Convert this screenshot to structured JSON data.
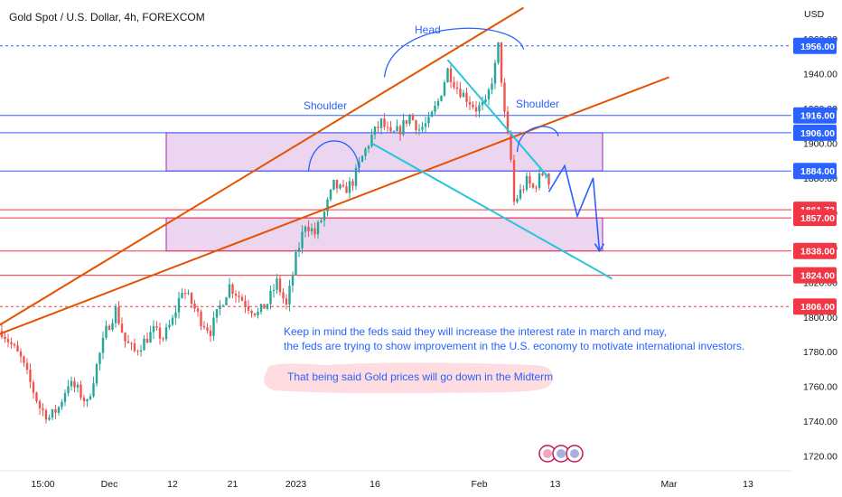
{
  "chart_data": {
    "type": "candlestick",
    "title": "Gold Spot / U.S. Dollar, 4h, FOREXCOM",
    "currency_label": "USD",
    "y_range": [
      1712,
      1972
    ],
    "y_ticks": [
      1720,
      1740,
      1760,
      1780,
      1800,
      1820,
      1840,
      1860,
      1880,
      1900,
      1920,
      1940,
      1960
    ],
    "y_tick_labels": [
      "1720.00",
      "1740.00",
      "1760.00",
      "1780.00",
      "1800.00",
      "1820.00",
      "1840.00",
      "1860.00",
      "1880.00",
      "1900.00",
      "1920.00",
      "1940.00",
      "1960.00"
    ],
    "x_labels": [
      {
        "label": "15:00",
        "index": 13
      },
      {
        "label": "Dec",
        "index": 34
      },
      {
        "label": "12",
        "index": 54
      },
      {
        "label": "21",
        "index": 73
      },
      {
        "label": "2023",
        "index": 93
      },
      {
        "label": "16",
        "index": 118
      },
      {
        "label": "Feb",
        "index": 151
      },
      {
        "label": "13",
        "index": 175
      },
      {
        "label": "Mar",
        "index": 211
      },
      {
        "label": "13",
        "index": 236
      }
    ],
    "price_labels": [
      {
        "value": 1956.0,
        "label": "1956.00",
        "color": "#2962ff",
        "style": "dashed"
      },
      {
        "value": 1916.0,
        "label": "1916.00",
        "color": "#2962ff",
        "style": "solid"
      },
      {
        "value": 1906.0,
        "label": "1906.00",
        "color": "#2962ff",
        "style": "solid"
      },
      {
        "value": 1884.0,
        "label": "1884.00",
        "color": "#2962ff",
        "style": "solid"
      },
      {
        "value": 1861.72,
        "label": "1861.72",
        "color": "#f23645",
        "style": "solid"
      },
      {
        "value": 1857.0,
        "label": "1857.00",
        "color": "#f23645",
        "style": "solid"
      },
      {
        "value": 1838.0,
        "label": "1838.00",
        "color": "#f23645",
        "style": "solid"
      },
      {
        "value": 1824.0,
        "label": "1824.00",
        "color": "#f23645",
        "style": "solid"
      },
      {
        "value": 1806.0,
        "label": "1806.00",
        "color": "#f23645",
        "style": "dashed"
      }
    ],
    "zones": [
      {
        "x_start": 52,
        "x_end": 190,
        "y_top": 1906,
        "y_bottom": 1884
      },
      {
        "x_start": 52,
        "x_end": 190,
        "y_top": 1857,
        "y_bottom": 1838
      }
    ],
    "close_path": [
      [
        0,
        1792
      ],
      [
        3,
        1784
      ],
      [
        6,
        1776
      ],
      [
        9,
        1762
      ],
      [
        12,
        1748
      ],
      [
        15,
        1742
      ],
      [
        18,
        1748
      ],
      [
        21,
        1762
      ],
      [
        24,
        1758
      ],
      [
        27,
        1750
      ],
      [
        30,
        1772
      ],
      [
        33,
        1792
      ],
      [
        36,
        1804
      ],
      [
        39,
        1786
      ],
      [
        42,
        1780
      ],
      [
        45,
        1786
      ],
      [
        48,
        1792
      ],
      [
        51,
        1788
      ],
      [
        54,
        1798
      ],
      [
        57,
        1816
      ],
      [
        60,
        1808
      ],
      [
        63,
        1798
      ],
      [
        66,
        1792
      ],
      [
        69,
        1806
      ],
      [
        72,
        1818
      ],
      [
        75,
        1812
      ],
      [
        78,
        1806
      ],
      [
        81,
        1802
      ],
      [
        84,
        1808
      ],
      [
        87,
        1820
      ],
      [
        90,
        1806
      ],
      [
        93,
        1834
      ],
      [
        96,
        1854
      ],
      [
        99,
        1848
      ],
      [
        102,
        1860
      ],
      [
        105,
        1876
      ],
      [
        108,
        1872
      ],
      [
        111,
        1878
      ],
      [
        114,
        1892
      ],
      [
        117,
        1904
      ],
      [
        120,
        1912
      ],
      [
        123,
        1904
      ],
      [
        126,
        1908
      ],
      [
        129,
        1916
      ],
      [
        132,
        1908
      ],
      [
        135,
        1912
      ],
      [
        138,
        1924
      ],
      [
        141,
        1942
      ],
      [
        144,
        1932
      ],
      [
        147,
        1926
      ],
      [
        150,
        1920
      ],
      [
        153,
        1922
      ],
      [
        156,
        1944
      ],
      [
        157,
        1958
      ],
      [
        159,
        1916
      ],
      [
        161,
        1890
      ],
      [
        162,
        1866
      ],
      [
        164,
        1872
      ],
      [
        166,
        1878
      ],
      [
        168,
        1874
      ],
      [
        170,
        1880
      ],
      [
        172,
        1885
      ],
      [
        173,
        1877
      ]
    ],
    "trendlines": [
      {
        "name": "upper-orange",
        "color": "#e65100",
        "points": [
          [
            -1,
            1795
          ],
          [
            165,
            1978
          ]
        ]
      },
      {
        "name": "lower-orange",
        "color": "#e65100",
        "points": [
          [
            -1,
            1790
          ],
          [
            211,
            1938
          ]
        ]
      },
      {
        "name": "cyan-top",
        "color": "#26c6da",
        "points": [
          [
            141,
            1948
          ],
          [
            173,
            1880
          ]
        ]
      },
      {
        "name": "cyan-bottom",
        "color": "#26c6da",
        "points": [
          [
            117,
            1900
          ],
          [
            193,
            1822
          ]
        ]
      }
    ],
    "projection": {
      "color": "#2962ff",
      "points": [
        [
          173,
          1872
        ],
        [
          178,
          1887
        ],
        [
          182,
          1858
        ],
        [
          187,
          1880
        ],
        [
          189,
          1838
        ]
      ]
    },
    "arcs": [
      {
        "name": "shoulder-left-arc",
        "start": [
          97,
          1884
        ],
        "peak": [
          107,
          1906
        ],
        "end": [
          113,
          1884
        ]
      },
      {
        "name": "head-arc",
        "start": [
          121,
          1938
        ],
        "peak": [
          142,
          1971
        ],
        "end": [
          165,
          1954
        ]
      },
      {
        "name": "shoulder-right-arc",
        "start": [
          163,
          1895
        ],
        "peak": [
          169,
          1912
        ],
        "end": [
          176,
          1904
        ]
      }
    ],
    "labels": {
      "head": "Head",
      "shoulder_left": "Shoulder",
      "shoulder_right": "Shoulder"
    },
    "annotation_lines": [
      "Keep in mind the feds said they will increase the interest rate in march and may,",
      " the feds are trying to show improvement in the U.S. economy to motivate international investors."
    ],
    "highlight_text": "That being said Gold prices will go down in the Midterm",
    "grid": false,
    "colors": {
      "up": "#26a69a",
      "down": "#ef5350",
      "zone_fill": "#e1bee7",
      "zone_border": "#9c27b0",
      "highlight_fill": "#ffcdd2"
    }
  }
}
